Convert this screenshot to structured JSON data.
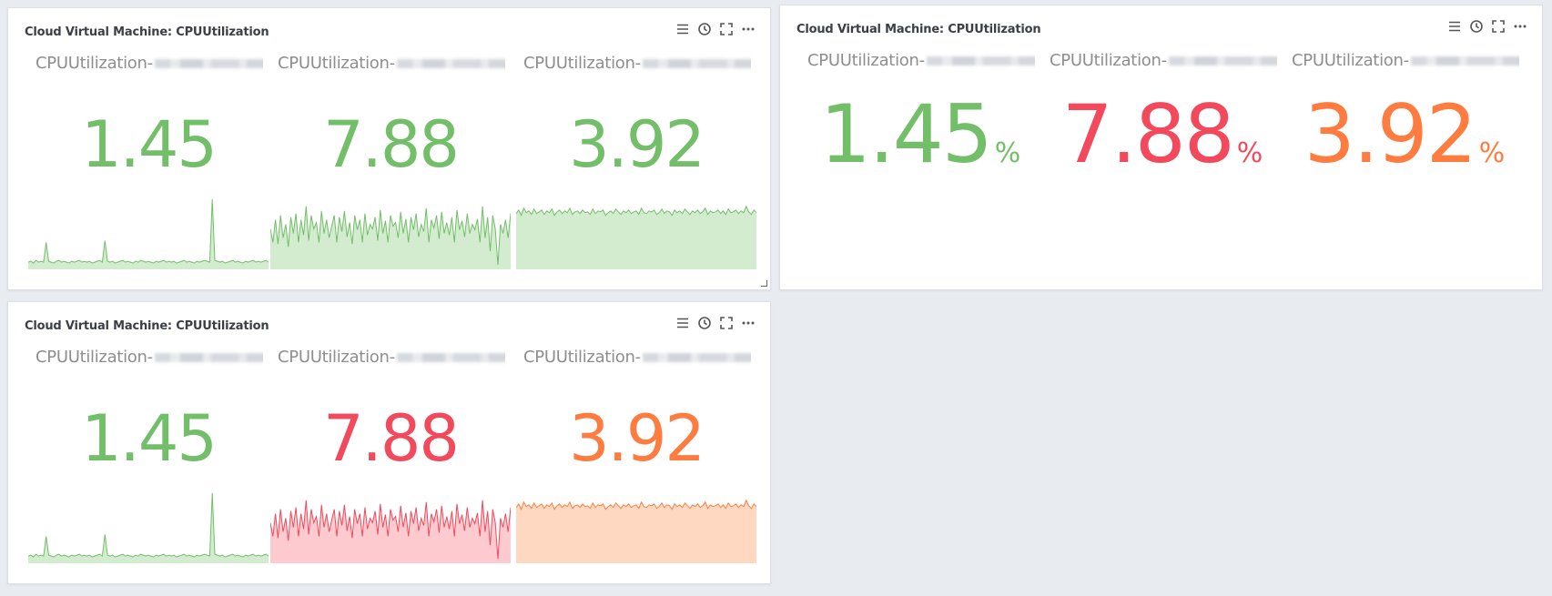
{
  "panels": [
    {
      "title": "Cloud Virtual Machine: CPUUtilization",
      "show_unit": false,
      "stats": [
        {
          "name": "CPUUtilization-",
          "value": "1.45",
          "unit": "",
          "color": "#73bf69",
          "fill": "#d3ebcf",
          "series": [
            8,
            9,
            7,
            10,
            8,
            9,
            8,
            30,
            9,
            8,
            7,
            9,
            10,
            8,
            9,
            8,
            7,
            9,
            8,
            9,
            10,
            8,
            9,
            8,
            9,
            7,
            8,
            9,
            10,
            8,
            32,
            9,
            8,
            9,
            7,
            8,
            9,
            10,
            8,
            9,
            8,
            7,
            9,
            8,
            10,
            9,
            8,
            9,
            8,
            7,
            9,
            8,
            9,
            10,
            8,
            9,
            8,
            9,
            7,
            8,
            9,
            10,
            8,
            9,
            8,
            7,
            9,
            8,
            9,
            10,
            9,
            8,
            78,
            10,
            9,
            8,
            9,
            7,
            8,
            9,
            10,
            8,
            9,
            8,
            7,
            9,
            8,
            9,
            10,
            8,
            9,
            8,
            9,
            10,
            8
          ]
        },
        {
          "name": "CPUUtilization-",
          "value": "7.88",
          "unit": "",
          "color": "#73bf69",
          "fill": "#d3ebcf",
          "series": [
            45,
            30,
            55,
            28,
            60,
            35,
            50,
            25,
            58,
            40,
            62,
            30,
            55,
            38,
            70,
            32,
            60,
            45,
            52,
            30,
            65,
            40,
            55,
            35,
            48,
            60,
            30,
            58,
            42,
            65,
            36,
            52,
            28,
            60,
            44,
            55,
            30,
            62,
            38,
            50,
            45,
            58,
            32,
            66,
            40,
            54,
            30,
            60,
            48,
            52,
            35,
            64,
            40,
            56,
            30,
            58,
            44,
            62,
            36,
            50,
            42,
            68,
            30,
            55,
            46,
            60,
            34,
            64,
            40,
            52,
            38,
            58,
            30,
            66,
            44,
            54,
            36,
            62,
            40,
            50,
            44,
            56,
            30,
            70,
            35,
            58,
            20,
            60,
            45,
            5,
            50,
            40,
            55,
            35,
            62
          ]
        },
        {
          "name": "CPUUtilization-",
          "value": "3.92",
          "unit": "",
          "color": "#73bf69",
          "fill": "#d3ebcf",
          "series": [
            62,
            66,
            60,
            68,
            63,
            65,
            61,
            67,
            62,
            64,
            66,
            61,
            65,
            63,
            67,
            60,
            64,
            66,
            62,
            65,
            63,
            68,
            61,
            64,
            65,
            62,
            66,
            63,
            64,
            61,
            67,
            62,
            65,
            64,
            66,
            60,
            63,
            65,
            62,
            67,
            64,
            61,
            65,
            63,
            66,
            62,
            64,
            65,
            61,
            68,
            63,
            62,
            65,
            64,
            66,
            61,
            63,
            67,
            62,
            65,
            64,
            60,
            66,
            63,
            65,
            62,
            67,
            64,
            61,
            65,
            63,
            66,
            62,
            64,
            68,
            61,
            65,
            63,
            64,
            66,
            62,
            65,
            61,
            67,
            63,
            64,
            66,
            62,
            65,
            63,
            70,
            64,
            61,
            66,
            63
          ]
        }
      ]
    },
    {
      "title": "Cloud Virtual Machine: CPUUtilization",
      "show_unit": true,
      "stats": [
        {
          "name": "CPUUtilization-",
          "value": "1.45",
          "unit": "%",
          "color": "#73bf69"
        },
        {
          "name": "CPUUtilization-",
          "value": "7.88",
          "unit": "%",
          "color": "#f2495c"
        },
        {
          "name": "CPUUtilization-",
          "value": "3.92",
          "unit": "%",
          "color": "#ff7c41"
        }
      ]
    },
    {
      "title": "Cloud Virtual Machine: CPUUtilization",
      "show_unit": false,
      "stats": [
        {
          "name": "CPUUtilization-",
          "value": "1.45",
          "unit": "",
          "color": "#73bf69",
          "fill": "#d3ebcf",
          "series": [
            8,
            9,
            7,
            10,
            8,
            9,
            8,
            30,
            9,
            8,
            7,
            9,
            10,
            8,
            9,
            8,
            7,
            9,
            8,
            9,
            10,
            8,
            9,
            8,
            9,
            7,
            8,
            9,
            10,
            8,
            32,
            9,
            8,
            9,
            7,
            8,
            9,
            10,
            8,
            9,
            8,
            7,
            9,
            8,
            10,
            9,
            8,
            9,
            8,
            7,
            9,
            8,
            9,
            10,
            8,
            9,
            8,
            9,
            7,
            8,
            9,
            10,
            8,
            9,
            8,
            7,
            9,
            8,
            9,
            10,
            9,
            8,
            78,
            10,
            9,
            8,
            9,
            7,
            8,
            9,
            10,
            8,
            9,
            8,
            7,
            9,
            8,
            9,
            10,
            8,
            9,
            8,
            9,
            10,
            8
          ]
        },
        {
          "name": "CPUUtilization-",
          "value": "7.88",
          "unit": "",
          "color": "#f2495c",
          "fill": "#fccacf",
          "series": [
            45,
            30,
            55,
            28,
            60,
            35,
            50,
            25,
            58,
            40,
            62,
            30,
            55,
            38,
            70,
            32,
            60,
            45,
            52,
            30,
            65,
            40,
            55,
            35,
            48,
            60,
            30,
            58,
            42,
            65,
            36,
            52,
            28,
            60,
            44,
            55,
            30,
            62,
            38,
            50,
            45,
            58,
            32,
            66,
            40,
            54,
            30,
            60,
            48,
            52,
            35,
            64,
            40,
            56,
            30,
            58,
            44,
            62,
            36,
            50,
            42,
            68,
            30,
            55,
            46,
            60,
            34,
            64,
            40,
            52,
            38,
            58,
            30,
            66,
            44,
            54,
            36,
            62,
            40,
            50,
            44,
            56,
            30,
            70,
            35,
            58,
            20,
            60,
            45,
            5,
            50,
            40,
            55,
            35,
            62
          ]
        },
        {
          "name": "CPUUtilization-",
          "value": "3.92",
          "unit": "",
          "color": "#ff7c41",
          "fill": "#ffd8c2",
          "series": [
            62,
            66,
            60,
            68,
            63,
            65,
            61,
            67,
            62,
            64,
            66,
            61,
            65,
            63,
            67,
            60,
            64,
            66,
            62,
            65,
            63,
            68,
            61,
            64,
            65,
            62,
            66,
            63,
            64,
            61,
            67,
            62,
            65,
            64,
            66,
            60,
            63,
            65,
            62,
            67,
            64,
            61,
            65,
            63,
            66,
            62,
            64,
            65,
            61,
            68,
            63,
            62,
            65,
            64,
            66,
            61,
            63,
            67,
            62,
            65,
            64,
            60,
            66,
            63,
            65,
            62,
            67,
            64,
            61,
            65,
            63,
            66,
            62,
            64,
            68,
            61,
            65,
            63,
            64,
            66,
            62,
            65,
            61,
            67,
            63,
            64,
            66,
            62,
            65,
            63,
            70,
            64,
            61,
            66,
            63
          ]
        }
      ]
    }
  ],
  "icons": [
    "menu-icon",
    "clock-icon",
    "fullscreen-icon",
    "more-icon"
  ]
}
